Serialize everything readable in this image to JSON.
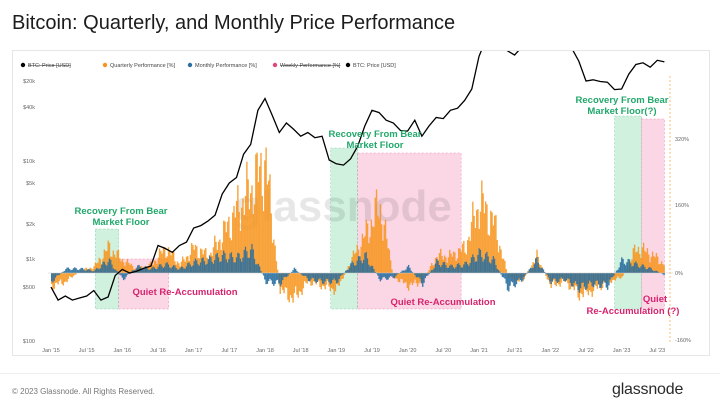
{
  "title": "Bitcoin: Quarterly, and Monthly Price Performance",
  "footer": {
    "copyright": "© 2023 Glassnode. All Rights Reserved.",
    "brand": "glassnode"
  },
  "watermark": "glassnode",
  "colors": {
    "price": "#000000",
    "quarterly": "#f7931a",
    "monthly": "#2a6fa0",
    "weekly": "#e0457b",
    "green_zone": "#a8e6c4",
    "pink_zone": "#f9b8d2",
    "green_text": "#22a86b",
    "pink_text": "#d6246e"
  },
  "chart_data": {
    "type": "line",
    "legend": [
      "BTC: Price [USD]",
      "Quarterly Performance [%]",
      "Monthly Performance [%]",
      "Weekly Performance [%]",
      "BTC: Price [USD]"
    ],
    "legend_placement": "top-left",
    "x_ticks": [
      "Jan '15",
      "Jul '15",
      "Jan '16",
      "Jul '16",
      "Jan '17",
      "Jul '17",
      "Jan '18",
      "Jul '18",
      "Jan '19",
      "Jul '19",
      "Jan '20",
      "Jul '20",
      "Jan '21",
      "Jul '21",
      "Jan '22",
      "Jul '22",
      "Jan '23",
      "Jul '23"
    ],
    "y_left_ticks": [
      "$20k",
      "$40k",
      "$10k",
      "$5k",
      "$2k",
      "$1k",
      "$500",
      "$100"
    ],
    "y_left_scale": "log",
    "y_right_ticks": [
      "320%",
      "160%",
      "0%",
      "-160%"
    ],
    "price_series": {
      "name": "BTC: Price [USD]",
      "x": [
        2015.0,
        2015.1,
        2015.2,
        2015.3,
        2015.4,
        2015.5,
        2015.6,
        2015.7,
        2015.8,
        2015.9,
        2016.0,
        2016.1,
        2016.2,
        2016.3,
        2016.4,
        2016.5,
        2016.6,
        2016.7,
        2016.8,
        2016.9,
        2017.0,
        2017.1,
        2017.2,
        2017.3,
        2017.4,
        2017.5,
        2017.6,
        2017.7,
        2017.8,
        2017.9,
        2018.0,
        2018.1,
        2018.2,
        2018.3,
        2018.4,
        2018.5,
        2018.6,
        2018.7,
        2018.8,
        2018.9,
        2019.0,
        2019.1,
        2019.2,
        2019.3,
        2019.4,
        2019.5,
        2019.6,
        2019.7,
        2019.8,
        2019.9,
        2020.0,
        2020.1,
        2020.2,
        2020.3,
        2020.4,
        2020.5,
        2020.6,
        2020.7,
        2020.8,
        2020.9,
        2021.0,
        2021.1,
        2021.2,
        2021.3,
        2021.4,
        2021.5,
        2021.6,
        2021.7,
        2021.8,
        2021.9,
        2022.0,
        2022.1,
        2022.2,
        2022.3,
        2022.4,
        2022.5,
        2022.6,
        2022.7,
        2022.8,
        2022.9,
        2023.0,
        2023.1,
        2023.2,
        2023.3,
        2023.4,
        2023.5,
        2023.6
      ],
      "y": [
        300,
        230,
        250,
        230,
        240,
        250,
        280,
        230,
        245,
        380,
        430,
        400,
        415,
        440,
        460,
        700,
        660,
        610,
        700,
        750,
        1000,
        1050,
        1150,
        1300,
        2000,
        2500,
        2800,
        4500,
        5500,
        11000,
        14000,
        10000,
        7000,
        8500,
        7500,
        6500,
        7000,
        6300,
        6500,
        4000,
        3700,
        3600,
        4100,
        5300,
        8000,
        11000,
        10500,
        9000,
        8500,
        7300,
        7200,
        9000,
        6500,
        8000,
        9500,
        9300,
        11000,
        11500,
        13500,
        17000,
        33000,
        47000,
        57000,
        58000,
        37000,
        34000,
        40000,
        45000,
        61000,
        62000,
        47000,
        40000,
        42000,
        39000,
        30000,
        20000,
        20500,
        19800,
        19500,
        16800,
        17000,
        23000,
        28000,
        29000,
        26500,
        30500,
        29500
      ]
    },
    "quarterly_performance": {
      "name": "Quarterly Performance [%]",
      "x": [
        2015.0,
        2015.2,
        2015.4,
        2015.6,
        2015.8,
        2016.0,
        2016.2,
        2016.4,
        2016.6,
        2016.8,
        2017.0,
        2017.2,
        2017.4,
        2017.6,
        2017.8,
        2018.0,
        2018.2,
        2018.4,
        2018.6,
        2018.8,
        2019.0,
        2019.2,
        2019.4,
        2019.6,
        2019.8,
        2020.0,
        2020.2,
        2020.4,
        2020.6,
        2020.8,
        2021.0,
        2021.2,
        2021.4,
        2021.6,
        2021.8,
        2022.0,
        2022.2,
        2022.4,
        2022.6,
        2022.8,
        2023.0,
        2023.2,
        2023.4,
        2023.6
      ],
      "y": [
        -30,
        -20,
        5,
        15,
        60,
        30,
        10,
        20,
        60,
        20,
        60,
        40,
        90,
        150,
        200,
        260,
        -40,
        -60,
        -20,
        -30,
        -40,
        30,
        90,
        160,
        -10,
        -30,
        -20,
        40,
        40,
        60,
        170,
        120,
        -10,
        -20,
        40,
        -30,
        -20,
        -50,
        -40,
        -20,
        -10,
        60,
        45,
        20
      ]
    },
    "monthly_performance": {
      "name": "Monthly Performance [%]",
      "x": [
        2015.0,
        2015.2,
        2015.4,
        2015.6,
        2015.8,
        2016.0,
        2016.2,
        2016.4,
        2016.6,
        2016.8,
        2017.0,
        2017.2,
        2017.4,
        2017.6,
        2017.8,
        2018.0,
        2018.2,
        2018.4,
        2018.6,
        2018.8,
        2019.0,
        2019.2,
        2019.4,
        2019.6,
        2019.8,
        2020.0,
        2020.2,
        2020.4,
        2020.6,
        2020.8,
        2021.0,
        2021.2,
        2021.4,
        2021.6,
        2021.8,
        2022.0,
        2022.2,
        2022.4,
        2022.6,
        2022.8,
        2023.0,
        2023.2,
        2023.4,
        2023.6
      ],
      "y": [
        -20,
        10,
        10,
        5,
        30,
        -15,
        15,
        10,
        20,
        10,
        25,
        30,
        40,
        35,
        55,
        -20,
        -25,
        10,
        -15,
        -20,
        -20,
        20,
        40,
        -15,
        -10,
        15,
        -25,
        25,
        15,
        20,
        45,
        30,
        -35,
        -15,
        30,
        -20,
        -15,
        -35,
        -25,
        -30,
        30,
        20,
        10,
        -5
      ]
    },
    "annotations": [
      {
        "text": "Recovery From Bear",
        "color": "green"
      },
      {
        "text": "Market Floor",
        "color": "green"
      },
      {
        "text": "Recovery From Bear",
        "color": "green"
      },
      {
        "text": "Market Floor",
        "color": "green"
      },
      {
        "text": "Recovery From Bear",
        "color": "green"
      },
      {
        "text": "Market Floor(?)",
        "color": "green"
      },
      {
        "text": "Quiet Re-Accumulation",
        "color": "pink"
      },
      {
        "text": "Quiet Re-Accumulation",
        "color": "pink"
      },
      {
        "text": "Quiet",
        "color": "pink"
      },
      {
        "text": "Re-Accumulation (?)",
        "color": "pink"
      }
    ],
    "zones": [
      {
        "type": "green",
        "from": 2015.62,
        "to": 2015.95
      },
      {
        "type": "pink",
        "from": 2015.95,
        "to": 2016.65
      },
      {
        "type": "green",
        "from": 2018.92,
        "to": 2019.3
      },
      {
        "type": "pink",
        "from": 2019.3,
        "to": 2020.75
      },
      {
        "type": "green",
        "from": 2022.9,
        "to": 2023.28
      },
      {
        "type": "pink",
        "from": 2023.28,
        "to": 2023.6
      }
    ],
    "grid": false
  }
}
